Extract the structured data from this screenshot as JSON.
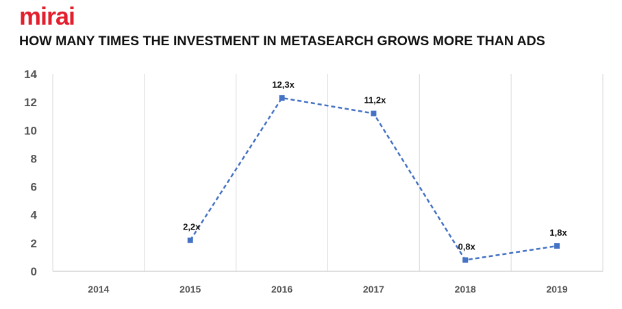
{
  "brand": {
    "logo_text": "mirai",
    "logo_color": "#e31e2d"
  },
  "title": "HOW MANY TIMES THE INVESTMENT IN METASEARCH GROWS MORE THAN ADS",
  "chart_data": {
    "type": "line",
    "title": "HOW MANY TIMES THE INVESTMENT IN METASEARCH GROWS MORE THAN ADS",
    "categories": [
      "2014",
      "2015",
      "2016",
      "2017",
      "2018",
      "2019"
    ],
    "series": [
      {
        "values": [
          null,
          2.2,
          12.3,
          11.2,
          0.8,
          1.8
        ],
        "labels": [
          "",
          "2,2x",
          "12,3x",
          "11,2x",
          "0,8x",
          "1,8x"
        ],
        "color": "#4472c4",
        "line_style": "dashed",
        "marker": "square"
      }
    ],
    "ylim": [
      0,
      14
    ],
    "yticks": [
      "0",
      "2",
      "4",
      "6",
      "8",
      "10",
      "12",
      "14"
    ],
    "xlabel": "",
    "ylabel": "",
    "grid": "vertical",
    "legend": "none"
  }
}
